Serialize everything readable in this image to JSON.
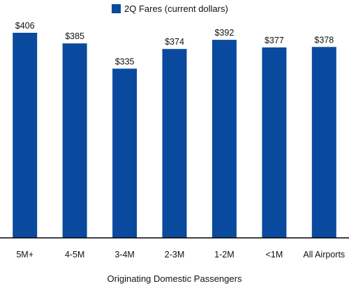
{
  "chart_data": {
    "type": "bar",
    "categories": [
      "5M+",
      "4-5M",
      "3-4M",
      "2-3M",
      "1-2M",
      "<1M",
      "All Airports"
    ],
    "series": [
      {
        "name": "2Q Fares (current dollars)",
        "values": [
          406,
          385,
          335,
          374,
          392,
          377,
          378
        ],
        "labels": [
          "$406",
          "$385",
          "$335",
          "$374",
          "$392",
          "$377",
          "$378"
        ],
        "color": "#0a4a9e"
      }
    ],
    "title": "",
    "xlabel": "Originating Domestic Passengers",
    "ylabel": "",
    "ylim": [
      0,
      420
    ],
    "grid": false,
    "legend_position": "top-center"
  }
}
